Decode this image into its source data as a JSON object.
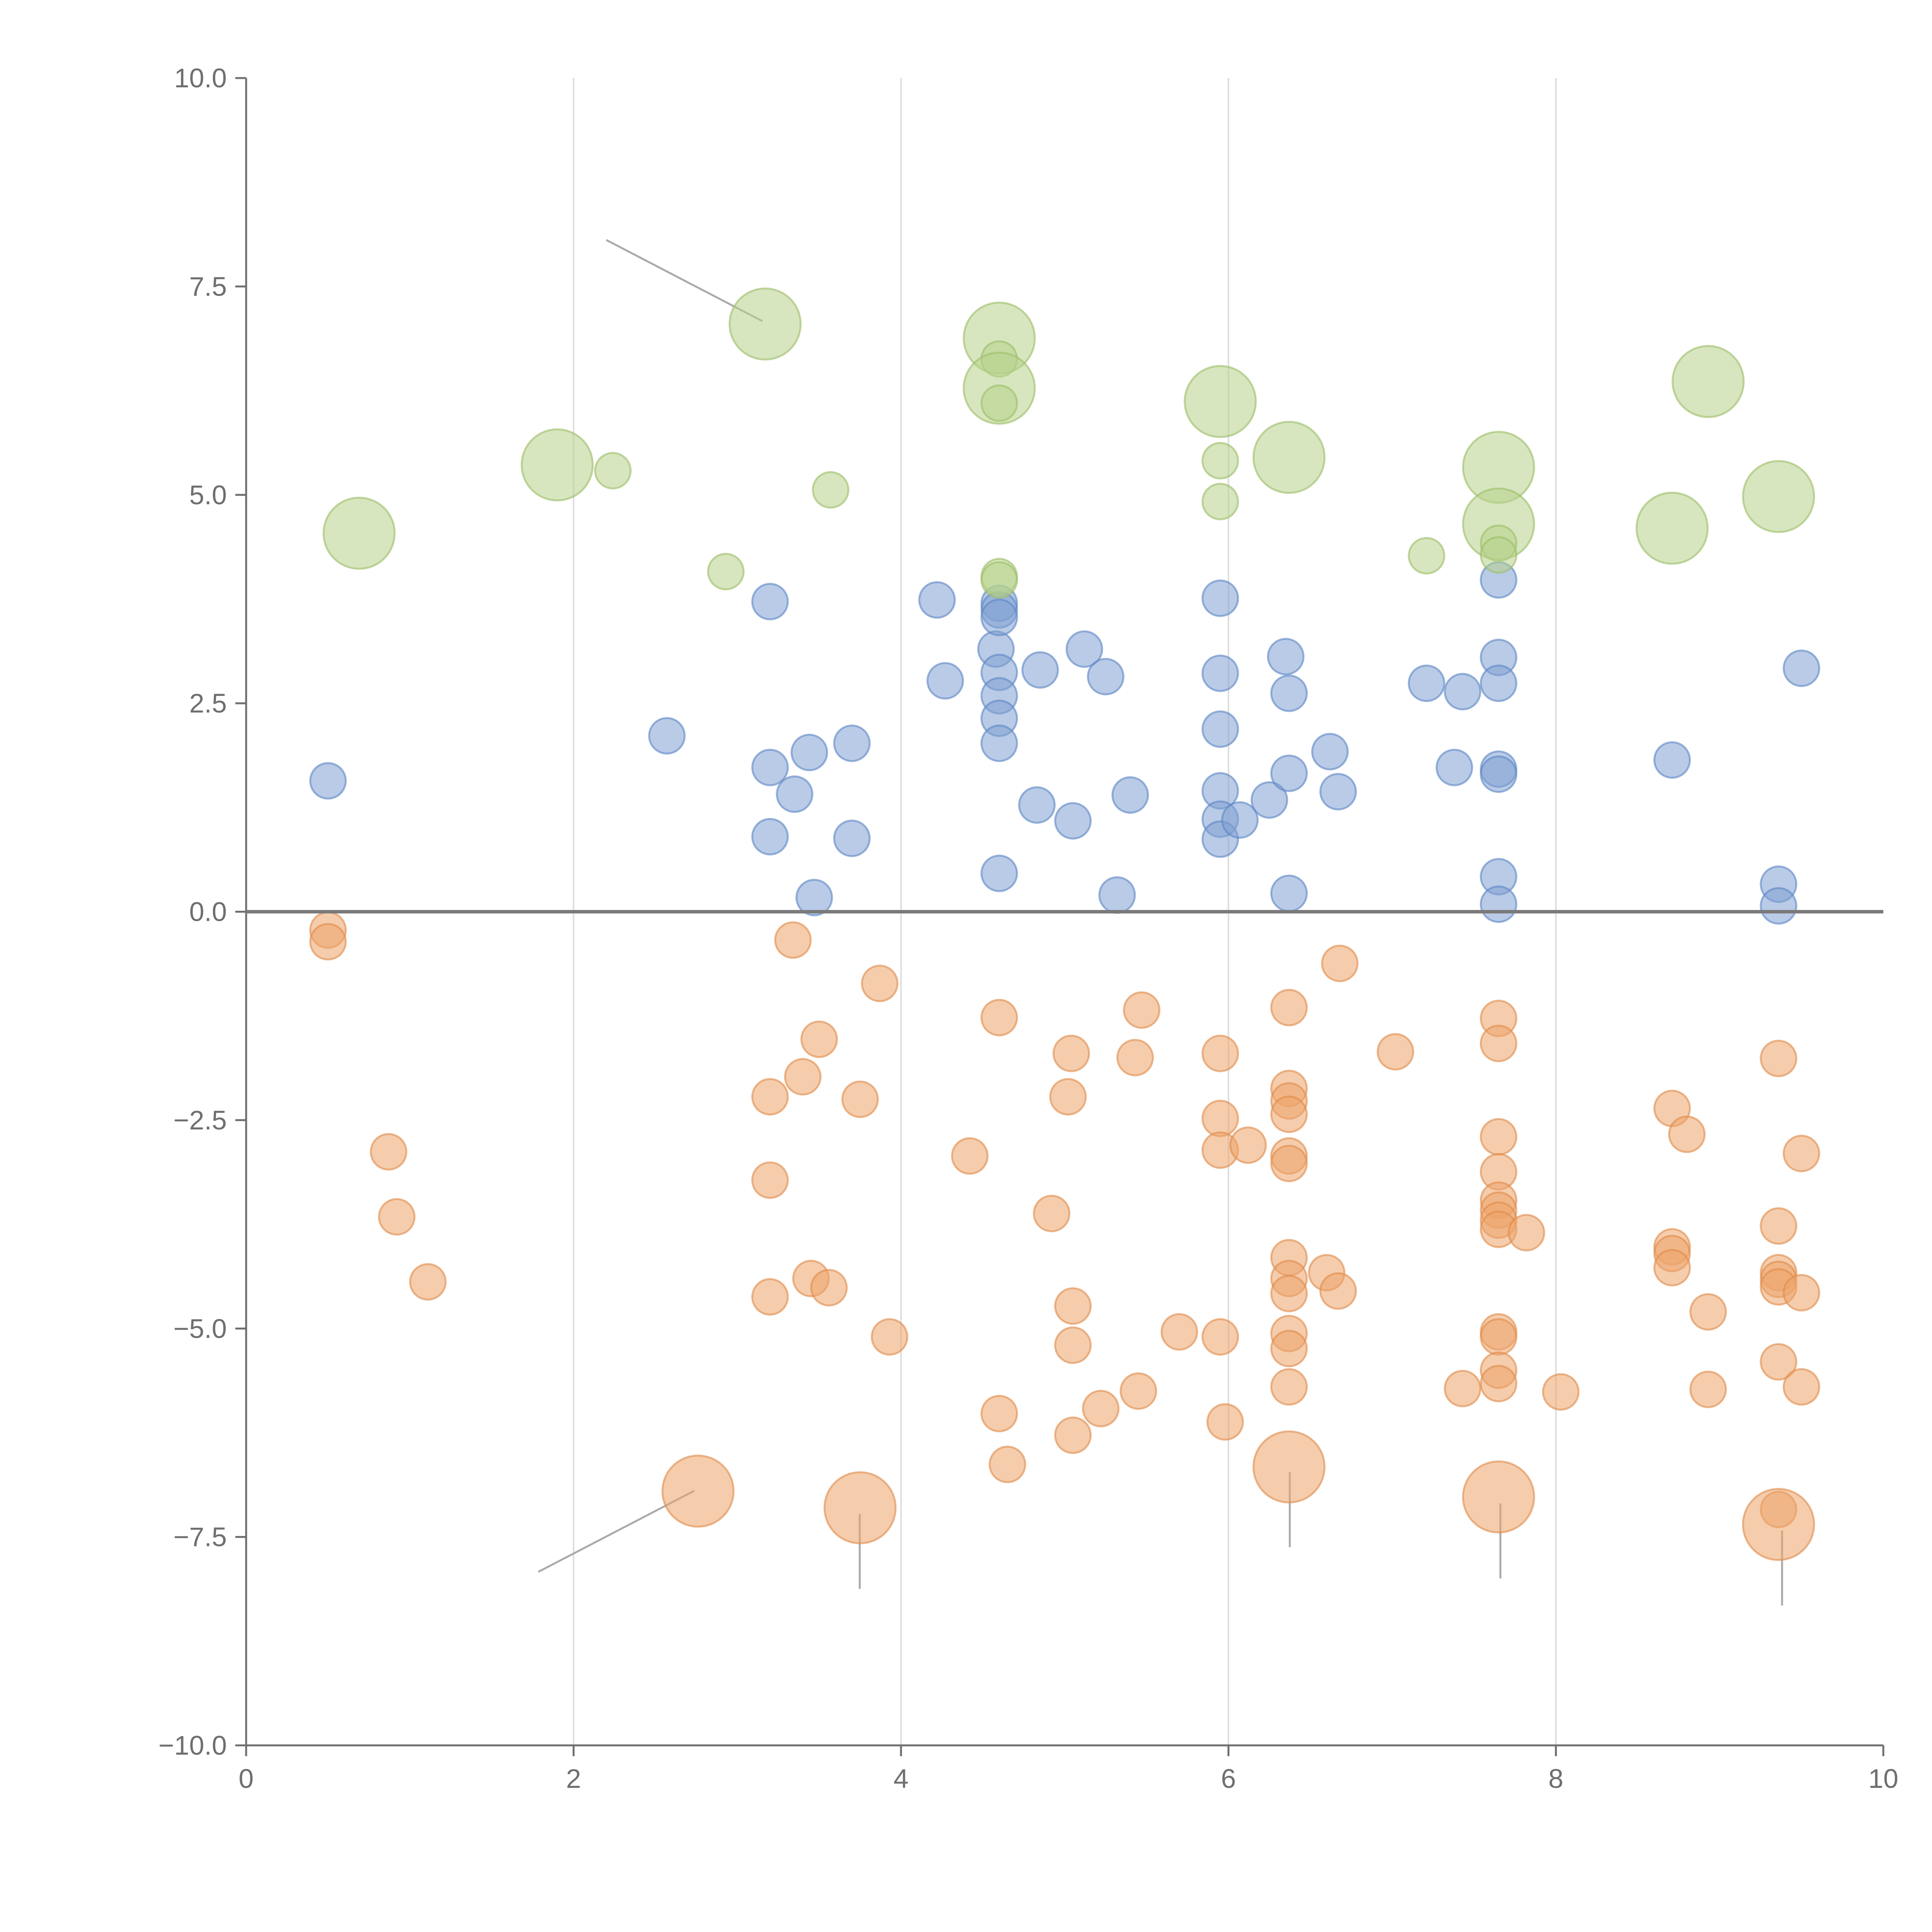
{
  "chart_data": {
    "type": "scatter",
    "title": "",
    "xlabel": "",
    "ylabel": "",
    "xlim": [
      0,
      10
    ],
    "ylim": [
      -10,
      10
    ],
    "x_ticks": [
      "0",
      "2",
      "4",
      "6",
      "8",
      "10"
    ],
    "y_ticks": [
      "10.0",
      "7.5",
      "5.0",
      "2.5",
      "0.0",
      "−2.5",
      "−5.0",
      "−7.5",
      "−10.0"
    ],
    "grid": "vertical",
    "zero_line": true,
    "colors": {
      "blue": "#7fa1d1",
      "blue_stroke": "#5b85c4",
      "orange": "#eda46a",
      "orange_stroke": "#e08a4a",
      "green": "#b7d18b",
      "green_stroke": "#9bbd65"
    },
    "series": [
      {
        "color": "blue",
        "points": [
          [
            0.5,
            1.57,
            1
          ],
          [
            2.57,
            2.11,
            1
          ],
          [
            3.2,
            3.72,
            1
          ],
          [
            3.2,
            1.73,
            1
          ],
          [
            3.35,
            1.41,
            1
          ],
          [
            3.44,
            1.91,
            1
          ],
          [
            3.2,
            0.9,
            1
          ],
          [
            3.47,
            0.17,
            1
          ],
          [
            3.7,
            2.02,
            1
          ],
          [
            3.7,
            0.88,
            1
          ],
          [
            4.22,
            3.74,
            1
          ],
          [
            4.27,
            2.77,
            1
          ],
          [
            4.58,
            3.15,
            1
          ],
          [
            4.6,
            3.7,
            1
          ],
          [
            4.6,
            3.62,
            1
          ],
          [
            4.6,
            3.53,
            1
          ],
          [
            4.6,
            2.87,
            1
          ],
          [
            4.6,
            2.59,
            1
          ],
          [
            4.6,
            2.32,
            1
          ],
          [
            4.6,
            2.02,
            1
          ],
          [
            4.6,
            0.46,
            1
          ],
          [
            4.83,
            1.28,
            1
          ],
          [
            4.85,
            2.9,
            1
          ],
          [
            5.05,
            1.09,
            1
          ],
          [
            5.12,
            3.15,
            1
          ],
          [
            5.25,
            2.82,
            1
          ],
          [
            5.32,
            0.2,
            1
          ],
          [
            5.4,
            1.4,
            1
          ],
          [
            5.95,
            3.76,
            1
          ],
          [
            5.95,
            2.86,
            1
          ],
          [
            5.95,
            2.19,
            1
          ],
          [
            5.95,
            1.45,
            1
          ],
          [
            5.95,
            1.11,
            1
          ],
          [
            5.95,
            0.87,
            1
          ],
          [
            6.07,
            1.1,
            1
          ],
          [
            6.25,
            1.34,
            1
          ],
          [
            6.35,
            3.06,
            1
          ],
          [
            6.37,
            2.62,
            1
          ],
          [
            6.37,
            1.66,
            1
          ],
          [
            6.37,
            0.22,
            1
          ],
          [
            6.62,
            1.92,
            1
          ],
          [
            6.67,
            1.44,
            1
          ],
          [
            7.21,
            2.74,
            1
          ],
          [
            7.38,
            1.73,
            1
          ],
          [
            7.43,
            2.64,
            1
          ],
          [
            7.65,
            3.98,
            1
          ],
          [
            7.65,
            3.05,
            1
          ],
          [
            7.65,
            2.74,
            1
          ],
          [
            7.65,
            1.71,
            1
          ],
          [
            7.65,
            1.65,
            1
          ],
          [
            7.65,
            0.42,
            1
          ],
          [
            7.65,
            0.09,
            1
          ],
          [
            8.71,
            1.82,
            1
          ],
          [
            9.36,
            0.33,
            1
          ],
          [
            9.36,
            0.07,
            1
          ],
          [
            9.5,
            2.92,
            1
          ]
        ]
      },
      {
        "color": "orange",
        "points": [
          [
            0.5,
            -0.22,
            1
          ],
          [
            0.5,
            -0.36,
            1
          ],
          [
            0.87,
            -2.88,
            1
          ],
          [
            0.92,
            -3.66,
            1
          ],
          [
            1.11,
            -4.44,
            1
          ],
          [
            2.76,
            -6.95,
            2
          ],
          [
            3.2,
            -2.22,
            1
          ],
          [
            3.2,
            -3.22,
            1
          ],
          [
            3.2,
            -4.62,
            1
          ],
          [
            3.34,
            -0.34,
            1
          ],
          [
            3.4,
            -1.98,
            1
          ],
          [
            3.45,
            -4.4,
            1
          ],
          [
            3.5,
            -1.53,
            1
          ],
          [
            3.56,
            -4.51,
            1
          ],
          [
            3.75,
            -2.25,
            1
          ],
          [
            3.75,
            -7.15,
            2
          ],
          [
            3.87,
            -0.86,
            1
          ],
          [
            3.93,
            -5.1,
            1
          ],
          [
            4.42,
            -2.93,
            1
          ],
          [
            4.6,
            -1.27,
            1
          ],
          [
            4.6,
            -6.02,
            1
          ],
          [
            4.65,
            -6.63,
            1
          ],
          [
            4.92,
            -3.62,
            1
          ],
          [
            5.02,
            -2.22,
            1
          ],
          [
            5.04,
            -1.7,
            1
          ],
          [
            5.05,
            -4.73,
            1
          ],
          [
            5.05,
            -5.2,
            1
          ],
          [
            5.05,
            -6.28,
            1
          ],
          [
            5.22,
            -5.96,
            1
          ],
          [
            5.43,
            -1.75,
            1
          ],
          [
            5.45,
            -5.75,
            1
          ],
          [
            5.47,
            -1.18,
            1
          ],
          [
            5.7,
            -5.04,
            1
          ],
          [
            5.95,
            -1.7,
            1
          ],
          [
            5.95,
            -2.48,
            1
          ],
          [
            5.95,
            -2.86,
            1
          ],
          [
            5.95,
            -5.1,
            1
          ],
          [
            5.98,
            -6.12,
            1
          ],
          [
            6.12,
            -2.8,
            1
          ],
          [
            6.37,
            -1.15,
            1
          ],
          [
            6.37,
            -2.12,
            1
          ],
          [
            6.37,
            -2.27,
            1
          ],
          [
            6.37,
            -2.43,
            1
          ],
          [
            6.37,
            -2.93,
            1
          ],
          [
            6.37,
            -3.02,
            1
          ],
          [
            6.37,
            -4.15,
            1
          ],
          [
            6.37,
            -4.4,
            1
          ],
          [
            6.37,
            -4.58,
            1
          ],
          [
            6.37,
            -5.06,
            1
          ],
          [
            6.37,
            -5.24,
            1
          ],
          [
            6.37,
            -5.7,
            1
          ],
          [
            6.37,
            -6.66,
            2
          ],
          [
            6.6,
            -4.33,
            1
          ],
          [
            6.67,
            -4.55,
            1
          ],
          [
            6.68,
            -0.62,
            1
          ],
          [
            7.02,
            -1.68,
            1
          ],
          [
            7.43,
            -5.72,
            1
          ],
          [
            7.65,
            -1.28,
            1
          ],
          [
            7.65,
            -1.58,
            1
          ],
          [
            7.65,
            -2.7,
            1
          ],
          [
            7.65,
            -3.12,
            1
          ],
          [
            7.65,
            -3.46,
            1
          ],
          [
            7.65,
            -3.58,
            1
          ],
          [
            7.65,
            -3.7,
            1
          ],
          [
            7.65,
            -3.81,
            1
          ],
          [
            7.65,
            -5.04,
            1
          ],
          [
            7.65,
            -5.1,
            1
          ],
          [
            7.65,
            -5.5,
            1
          ],
          [
            7.65,
            -5.66,
            1
          ],
          [
            7.65,
            -7.02,
            2
          ],
          [
            7.82,
            -3.85,
            1
          ],
          [
            8.03,
            -5.76,
            1
          ],
          [
            8.71,
            -2.36,
            1
          ],
          [
            8.71,
            -4.02,
            1
          ],
          [
            8.71,
            -4.1,
            1
          ],
          [
            8.71,
            -4.27,
            1
          ],
          [
            8.8,
            -2.67,
            1
          ],
          [
            8.93,
            -4.8,
            1
          ],
          [
            8.93,
            -5.73,
            1
          ],
          [
            9.36,
            -1.76,
            1
          ],
          [
            9.36,
            -3.77,
            1
          ],
          [
            9.36,
            -4.33,
            1
          ],
          [
            9.36,
            -4.41,
            1
          ],
          [
            9.36,
            -4.5,
            1
          ],
          [
            9.36,
            -5.4,
            1
          ],
          [
            9.36,
            -7.17,
            1
          ],
          [
            9.36,
            -7.35,
            2
          ],
          [
            9.5,
            -2.9,
            1
          ],
          [
            9.5,
            -4.57,
            1
          ],
          [
            9.5,
            -5.7,
            1
          ]
        ]
      },
      {
        "color": "green",
        "points": [
          [
            0.69,
            4.54,
            2
          ],
          [
            1.9,
            5.36,
            2
          ],
          [
            2.24,
            5.29,
            1
          ],
          [
            2.93,
            4.08,
            1
          ],
          [
            3.17,
            7.05,
            2
          ],
          [
            3.57,
            5.06,
            1
          ],
          [
            4.6,
            6.88,
            2
          ],
          [
            4.6,
            6.63,
            1
          ],
          [
            4.6,
            6.28,
            2
          ],
          [
            4.6,
            6.1,
            1
          ],
          [
            4.6,
            4.02,
            1
          ],
          [
            4.6,
            3.98,
            1
          ],
          [
            5.95,
            6.12,
            2
          ],
          [
            5.95,
            5.41,
            1
          ],
          [
            5.95,
            4.92,
            1
          ],
          [
            6.37,
            5.45,
            2
          ],
          [
            7.21,
            4.27,
            1
          ],
          [
            7.65,
            5.33,
            2
          ],
          [
            7.65,
            4.65,
            2
          ],
          [
            7.65,
            4.42,
            1
          ],
          [
            7.65,
            4.28,
            1
          ],
          [
            8.71,
            4.6,
            2
          ],
          [
            8.93,
            6.36,
            2
          ],
          [
            9.36,
            4.98,
            2
          ]
        ]
      }
    ]
  }
}
